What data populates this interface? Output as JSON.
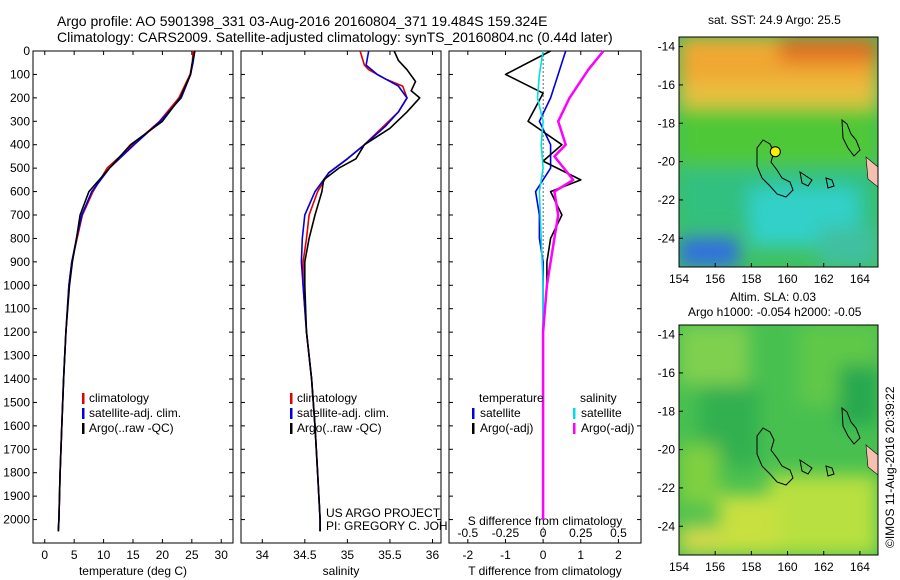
{
  "header": {
    "line1": "Argo profile: AO 5901398_331 03-Aug-2016 20160804_371 19.484S 159.324E",
    "line2": "Climatology: CARS2009. Satellite-adjusted climatology: synTS_20160804.nc (0.44d later)"
  },
  "credit": "©IMOS 11-Aug-2016 20:39:22",
  "project_note": [
    "US ARGO PROJECT",
    "PI: GREGORY C. JOHNSON"
  ],
  "colors": {
    "climatology": "#e00000",
    "satellite": "#0000e0",
    "argo": "#000000",
    "sat_s": "#00e0e0",
    "argo_s": "#ff00ff"
  },
  "chart_data": [
    {
      "type": "line",
      "xlabel": "temperature (deg C)",
      "ylabel": "",
      "xlim": [
        -2,
        32
      ],
      "ylim": [
        2100,
        0
      ],
      "xticks": [
        0,
        5,
        10,
        15,
        20,
        25,
        30
      ],
      "yticks": [
        0,
        100,
        200,
        300,
        400,
        500,
        600,
        700,
        800,
        900,
        1000,
        1100,
        1200,
        1300,
        1400,
        1500,
        1600,
        1700,
        1800,
        1900,
        2000
      ],
      "legend": [
        "climatology",
        "satellite-adj. clim.",
        "Argo(..raw -QC)"
      ],
      "series": [
        {
          "name": "climatology",
          "color": "#e00000",
          "points": [
            [
              25.2,
              0
            ],
            [
              25.1,
              50
            ],
            [
              24.7,
              100
            ],
            [
              22.8,
              200
            ],
            [
              19.5,
              300
            ],
            [
              15.0,
              400
            ],
            [
              10.6,
              500
            ],
            [
              8.2,
              600
            ],
            [
              6.4,
              700
            ],
            [
              5.5,
              800
            ],
            [
              4.6,
              900
            ],
            [
              4.1,
              1000
            ],
            [
              3.6,
              1200
            ],
            [
              3.2,
              1400
            ],
            [
              2.9,
              1600
            ],
            [
              2.6,
              1800
            ],
            [
              2.4,
              2000
            ],
            [
              2.3,
              2050
            ]
          ]
        },
        {
          "name": "satellite-adj. clim.",
          "color": "#0000e0",
          "points": [
            [
              25.5,
              0
            ],
            [
              25.2,
              50
            ],
            [
              24.8,
              100
            ],
            [
              23.2,
              200
            ],
            [
              19.6,
              300
            ],
            [
              15.2,
              400
            ],
            [
              11.0,
              500
            ],
            [
              8.0,
              600
            ],
            [
              6.3,
              700
            ],
            [
              5.4,
              800
            ],
            [
              4.6,
              900
            ],
            [
              4.1,
              1000
            ],
            [
              3.6,
              1200
            ],
            [
              3.2,
              1400
            ],
            [
              2.9,
              1600
            ],
            [
              2.6,
              1800
            ],
            [
              2.4,
              2000
            ],
            [
              2.3,
              2050
            ]
          ]
        },
        {
          "name": "Argo(..raw -QC)",
          "color": "#000000",
          "points": [
            [
              25.5,
              0
            ],
            [
              25.0,
              60
            ],
            [
              24.8,
              100
            ],
            [
              23.0,
              200
            ],
            [
              20.0,
              300
            ],
            [
              14.6,
              400
            ],
            [
              11.0,
              500
            ],
            [
              7.5,
              600
            ],
            [
              6.0,
              700
            ],
            [
              5.4,
              800
            ],
            [
              4.7,
              900
            ],
            [
              4.2,
              1000
            ],
            [
              3.6,
              1200
            ],
            [
              3.2,
              1400
            ],
            [
              2.9,
              1600
            ],
            [
              2.6,
              1800
            ],
            [
              2.4,
              2000
            ],
            [
              2.3,
              2050
            ]
          ]
        }
      ]
    },
    {
      "type": "line",
      "xlabel": "salinity",
      "ylabel": "",
      "xlim": [
        33.75,
        36.1
      ],
      "ylim": [
        2100,
        0
      ],
      "xticks": [
        34,
        34.5,
        35,
        35.5,
        36
      ],
      "legend": [
        "climatology",
        "satellite-adj. clim.",
        "Argo(..raw -QC)"
      ],
      "series": [
        {
          "name": "climatology",
          "color": "#e00000",
          "points": [
            [
              35.15,
              0
            ],
            [
              35.2,
              60
            ],
            [
              35.25,
              80
            ],
            [
              35.45,
              120
            ],
            [
              35.65,
              150
            ],
            [
              35.7,
              200
            ],
            [
              35.6,
              260
            ],
            [
              35.4,
              330
            ],
            [
              35.2,
              400
            ],
            [
              35.0,
              460
            ],
            [
              34.78,
              520
            ],
            [
              34.65,
              600
            ],
            [
              34.55,
              700
            ],
            [
              34.52,
              800
            ],
            [
              34.48,
              900
            ],
            [
              34.48,
              1000
            ],
            [
              34.52,
              1200
            ],
            [
              34.58,
              1400
            ],
            [
              34.62,
              1600
            ],
            [
              34.65,
              1800
            ],
            [
              34.68,
              2000
            ],
            [
              34.68,
              2050
            ]
          ]
        },
        {
          "name": "satellite-adj. clim.",
          "color": "#0000e0",
          "points": [
            [
              35.25,
              0
            ],
            [
              35.22,
              60
            ],
            [
              35.35,
              100
            ],
            [
              35.6,
              150
            ],
            [
              35.7,
              200
            ],
            [
              35.6,
              260
            ],
            [
              35.45,
              320
            ],
            [
              35.2,
              400
            ],
            [
              35.0,
              460
            ],
            [
              34.78,
              520
            ],
            [
              34.62,
              600
            ],
            [
              34.5,
              700
            ],
            [
              34.47,
              800
            ],
            [
              34.46,
              900
            ],
            [
              34.48,
              1000
            ],
            [
              34.52,
              1200
            ],
            [
              34.58,
              1400
            ],
            [
              34.62,
              1600
            ],
            [
              34.65,
              1800
            ],
            [
              34.68,
              2000
            ],
            [
              34.68,
              2050
            ]
          ]
        },
        {
          "name": "Argo(..raw -QC)",
          "color": "#000000",
          "points": [
            [
              35.55,
              0
            ],
            [
              35.6,
              40
            ],
            [
              35.7,
              80
            ],
            [
              35.8,
              130
            ],
            [
              35.75,
              170
            ],
            [
              35.85,
              200
            ],
            [
              35.7,
              260
            ],
            [
              35.5,
              330
            ],
            [
              35.2,
              400
            ],
            [
              35.1,
              460
            ],
            [
              34.9,
              500
            ],
            [
              34.72,
              550
            ],
            [
              34.7,
              600
            ],
            [
              34.62,
              700
            ],
            [
              34.55,
              800
            ],
            [
              34.5,
              900
            ],
            [
              34.5,
              1000
            ],
            [
              34.52,
              1200
            ],
            [
              34.58,
              1400
            ],
            [
              34.62,
              1600
            ],
            [
              34.65,
              1800
            ],
            [
              34.68,
              2000
            ],
            [
              34.68,
              2050
            ]
          ]
        }
      ]
    },
    {
      "type": "line",
      "xlabel": "T difference from climatology",
      "xlabel_top": "S difference from climatology",
      "ylabel": "",
      "xlim": [
        -2.5,
        2.6
      ],
      "ylim": [
        2100,
        0
      ],
      "xticks": [
        -2,
        -1,
        0,
        1,
        2
      ],
      "xticklabels_s": [
        "-0.5",
        "-0.25",
        "0",
        "0.25",
        "0.5"
      ],
      "legend_title_t": "temperature",
      "legend_title_s": "salinity",
      "legend_t": [
        "satellite",
        "Argo(-adj)"
      ],
      "legend_s": [
        "satellite",
        "Argo(-adj)"
      ],
      "series": [
        {
          "name": "satellite",
          "color": "#0000e0",
          "points": [
            [
              0.6,
              0
            ],
            [
              0.5,
              50
            ],
            [
              0.4,
              100
            ],
            [
              0.2,
              200
            ],
            [
              -0.1,
              300
            ],
            [
              0.2,
              400
            ],
            [
              0.2,
              500
            ],
            [
              -0.2,
              600
            ],
            [
              -0.1,
              700
            ],
            [
              -0.1,
              800
            ],
            [
              0.0,
              900
            ],
            [
              0.0,
              1000
            ],
            [
              0.0,
              1200
            ],
            [
              0.0,
              1400
            ],
            [
              0.0,
              1600
            ],
            [
              0.0,
              1800
            ],
            [
              0.0,
              2000
            ]
          ]
        },
        {
          "name": "Argo(-adj)",
          "color": "#000000",
          "points": [
            [
              0.2,
              0
            ],
            [
              -1.0,
              100
            ],
            [
              0.0,
              180
            ],
            [
              -0.4,
              300
            ],
            [
              0.5,
              400
            ],
            [
              0.0,
              470
            ],
            [
              1.0,
              550
            ],
            [
              0.2,
              600
            ],
            [
              0.5,
              700
            ],
            [
              0.2,
              800
            ],
            [
              0.1,
              900
            ],
            [
              0.1,
              1000
            ],
            [
              0.0,
              1200
            ],
            [
              0.0,
              1400
            ],
            [
              0.0,
              1600
            ],
            [
              0.0,
              1800
            ],
            [
              0.0,
              2000
            ]
          ]
        },
        {
          "name": "satellite",
          "color": "#00e0e0",
          "points": [
            [
              0.0,
              0
            ],
            [
              -0.1,
              100
            ],
            [
              -0.15,
              200
            ],
            [
              0.0,
              300
            ],
            [
              -0.05,
              400
            ],
            [
              0.0,
              500
            ],
            [
              -0.1,
              600
            ],
            [
              -0.05,
              800
            ],
            [
              0.0,
              1000
            ],
            [
              0.0,
              1200
            ],
            [
              0.0,
              1400
            ],
            [
              0.0,
              1600
            ],
            [
              0.0,
              1800
            ],
            [
              0.0,
              2000
            ]
          ]
        },
        {
          "name": "Argo(-adj)",
          "color": "#ff00ff",
          "points": [
            [
              1.6,
              0
            ],
            [
              1.2,
              80
            ],
            [
              0.7,
              200
            ],
            [
              0.4,
              300
            ],
            [
              0.6,
              400
            ],
            [
              0.3,
              450
            ],
            [
              0.8,
              550
            ],
            [
              0.3,
              600
            ],
            [
              0.4,
              700
            ],
            [
              0.3,
              800
            ],
            [
              0.2,
              900
            ],
            [
              0.1,
              1000
            ],
            [
              0.0,
              1200
            ],
            [
              0.0,
              1400
            ],
            [
              0.0,
              1600
            ],
            [
              0.0,
              1800
            ],
            [
              0.0,
              2000
            ]
          ]
        }
      ]
    },
    {
      "type": "heatmap",
      "title": "sat. SST: 24.9 Argo: 25.5",
      "xlim": [
        154,
        165
      ],
      "ylim": [
        -25.5,
        -13.5
      ],
      "xticks": [
        154,
        156,
        158,
        160,
        162,
        164
      ],
      "yticks": [
        -14,
        -16,
        -18,
        -20,
        -22,
        -24
      ],
      "argo_position": [
        159.324,
        -19.484
      ]
    },
    {
      "type": "heatmap",
      "title": "Altim. SLA: 0.03",
      "subtitle": "Argo h1000: -0.054 h2000: -0.05",
      "xlim": [
        154,
        165
      ],
      "ylim": [
        -25.5,
        -13.5
      ],
      "xticks": [
        154,
        156,
        158,
        160,
        162,
        164
      ],
      "yticks": [
        -14,
        -16,
        -18,
        -20,
        -22,
        -24
      ]
    }
  ]
}
